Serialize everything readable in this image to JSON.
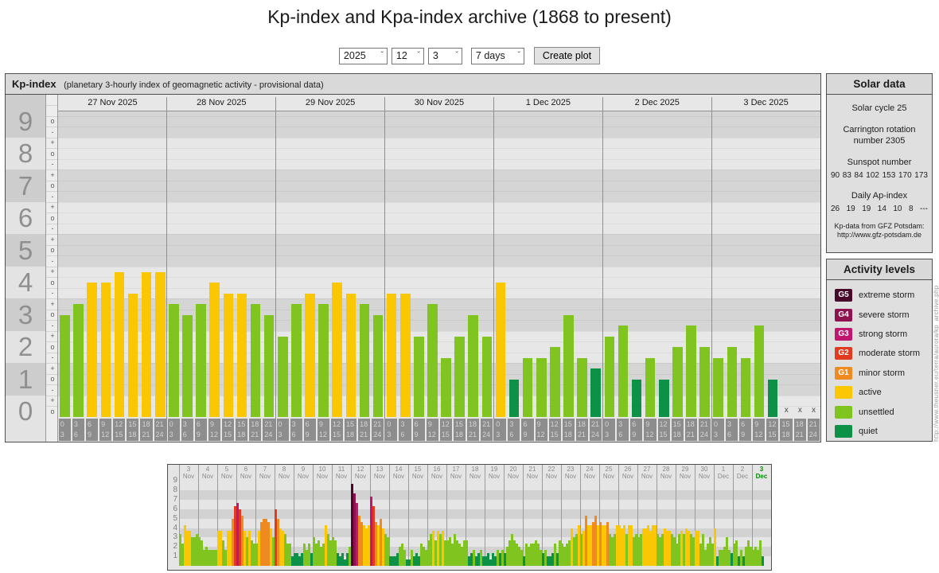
{
  "title": "Kp-index and Kpa-index archive (1868 to present)",
  "controls": {
    "year": "2025",
    "month": "12",
    "day": "3",
    "range": "7 days",
    "create_button": "Create plot"
  },
  "main_chart": {
    "header_title": "Kp-index",
    "header_subtitle": "(planetary 3-hourly index of geomagnetic activity - provisional data)",
    "missing_marker": "x",
    "y_numbers": [
      9,
      8,
      7,
      6,
      5,
      4,
      3,
      2,
      1,
      0
    ],
    "sub_tick_labels": [
      "+",
      "o",
      "-"
    ],
    "hour_slots": [
      [
        "0",
        "3"
      ],
      [
        "3",
        "6"
      ],
      [
        "6",
        "9"
      ],
      [
        "9",
        "12"
      ],
      [
        "12",
        "15"
      ],
      [
        "15",
        "18"
      ],
      [
        "18",
        "21"
      ],
      [
        "21",
        "24"
      ]
    ]
  },
  "solar_data": {
    "title": "Solar data",
    "solar_cycle": "Solar cycle 25",
    "carrington": "Carrington rotation number 2305",
    "sunspot_label": "Sunspot number",
    "sunspot_values": [
      "90",
      "83",
      "84",
      "102",
      "153",
      "170",
      "173"
    ],
    "ap_label": "Daily Ap-index",
    "ap_values": [
      "26",
      "19",
      "19",
      "14",
      "10",
      "8",
      "---"
    ],
    "source_line1": "Kp-data from GFZ Potsdam:",
    "source_line2": "http://www.gfz-potsdam.de"
  },
  "activity_levels": {
    "title": "Activity levels",
    "items": [
      {
        "code": "G5",
        "label": "extreme storm",
        "color": "#470829"
      },
      {
        "code": "G4",
        "label": "severe storm",
        "color": "#8e1150"
      },
      {
        "code": "G3",
        "label": "strong storm",
        "color": "#c11670"
      },
      {
        "code": "G2",
        "label": "moderate storm",
        "color": "#e03b21"
      },
      {
        "code": "G1",
        "label": "minor storm",
        "color": "#ef8a20"
      },
      {
        "code": "",
        "label": "active",
        "color": "#fbc602"
      },
      {
        "code": "",
        "label": "unsettled",
        "color": "#80c41f"
      },
      {
        "code": "",
        "label": "quiet",
        "color": "#0d9147"
      }
    ]
  },
  "watermark": "http://www.theusner.eu/terra/aurora/kp_archive.php",
  "chart_data": [
    {
      "type": "bar",
      "title": "Kp-index 27 Nov 2025 - 3 Dec 2025 (3-hourly values, provisional)",
      "ylabel": "Kp",
      "ylim": [
        0,
        9.33
      ],
      "grid": true,
      "x_slot_labels": [
        "0-3",
        "3-6",
        "6-9",
        "9-12",
        "12-15",
        "15-18",
        "18-21",
        "21-24"
      ],
      "days": [
        {
          "date": "27 Nov 2025",
          "kp": [
            3,
            3.33,
            4,
            4,
            4.33,
            3.67,
            4.33,
            4.33
          ]
        },
        {
          "date": "28 Nov 2025",
          "kp": [
            3.33,
            3,
            3.33,
            4,
            3.67,
            3.67,
            3.33,
            3
          ]
        },
        {
          "date": "29 Nov 2025",
          "kp": [
            2.33,
            3.33,
            3.67,
            3.33,
            4,
            3.67,
            3.33,
            3
          ]
        },
        {
          "date": "30 Nov 2025",
          "kp": [
            3.67,
            3.67,
            2.33,
            3.33,
            1.67,
            2.33,
            3,
            2.33
          ]
        },
        {
          "date": "1 Dec 2025",
          "kp": [
            4,
            1,
            1.67,
            1.67,
            2,
            3,
            1.67,
            1.33
          ]
        },
        {
          "date": "2 Dec 2025",
          "kp": [
            2.33,
            2.67,
            1,
            1.67,
            1,
            2,
            2.67,
            2
          ]
        },
        {
          "date": "3 Dec 2025",
          "kp": [
            1.67,
            2,
            1.67,
            2.67,
            1,
            null,
            null,
            null
          ]
        }
      ]
    },
    {
      "type": "bar",
      "title": "Kp-index overview 3 Nov 2025 - 3 Dec 2025",
      "ylim": [
        0,
        9
      ],
      "y_ticks": [
        9,
        8,
        7,
        6,
        5,
        4,
        3,
        2,
        1
      ],
      "days": [
        {
          "day": "3",
          "month": "Nov",
          "kp": [
            3.33,
            2.33,
            4.33,
            3.67,
            3.67,
            3,
            3,
            3.33
          ]
        },
        {
          "day": "4",
          "month": "Nov",
          "kp": [
            3,
            2.67,
            1.67,
            2,
            1.67,
            1.67,
            1.67,
            1.67
          ]
        },
        {
          "day": "5",
          "month": "Nov",
          "kp": [
            3.67,
            3.67,
            2.67,
            1.67,
            3.67,
            3.67,
            5,
            6.33
          ]
        },
        {
          "day": "6",
          "month": "Nov",
          "kp": [
            6.67,
            6,
            5.33,
            3.67,
            3,
            3.67,
            2.67,
            2.33
          ]
        },
        {
          "day": "7",
          "month": "Nov",
          "kp": [
            2.33,
            3.67,
            4.67,
            5,
            5,
            4.67,
            4,
            3
          ]
        },
        {
          "day": "8",
          "month": "Nov",
          "kp": [
            6,
            5,
            4,
            3.67,
            3.33,
            2.33,
            2.33,
            1
          ]
        },
        {
          "day": "9",
          "month": "Nov",
          "kp": [
            1.33,
            1.33,
            1,
            1.33,
            2.33,
            1.67,
            2.33,
            1.33
          ]
        },
        {
          "day": "10",
          "month": "Nov",
          "kp": [
            3,
            2.33,
            2.67,
            2,
            2.33,
            4.33,
            3.33,
            2.67
          ]
        },
        {
          "day": "11",
          "month": "Nov",
          "kp": [
            3,
            2.67,
            1.33,
            1,
            1.33,
            0.67,
            1.33,
            2
          ]
        },
        {
          "day": "12",
          "month": "Nov",
          "kp": [
            8.67,
            7.67,
            6.67,
            5.33,
            4.67,
            4.33,
            4,
            4.33
          ]
        },
        {
          "day": "13",
          "month": "Nov",
          "kp": [
            7.33,
            6.33,
            4.67,
            4.33,
            5,
            4,
            3.33,
            3
          ]
        },
        {
          "day": "14",
          "month": "Nov",
          "kp": [
            1,
            1,
            1,
            1.33,
            2,
            2.33,
            1.67,
            0.67
          ]
        },
        {
          "day": "15",
          "month": "Nov",
          "kp": [
            0.67,
            1.67,
            1,
            1.33,
            1,
            2.33,
            2,
            1.67
          ]
        },
        {
          "day": "16",
          "month": "Nov",
          "kp": [
            2.67,
            3.33,
            3.67,
            2.67,
            3.67,
            3.33,
            3.67,
            2.67
          ]
        },
        {
          "day": "17",
          "month": "Nov",
          "kp": [
            2.67,
            3,
            2.33,
            3.33,
            2.67,
            2.33,
            2,
            2.67
          ]
        },
        {
          "day": "18",
          "month": "Nov",
          "kp": [
            2.67,
            1,
            1.33,
            1.67,
            1,
            1.33,
            1.67,
            1
          ]
        },
        {
          "day": "19",
          "month": "Nov",
          "kp": [
            1,
            1.33,
            0.67,
            1.33,
            1,
            1.67,
            1.33,
            1.67
          ]
        },
        {
          "day": "20",
          "month": "Nov",
          "kp": [
            1.33,
            2,
            2.67,
            3.33,
            2.67,
            2.33,
            2,
            1.67
          ]
        },
        {
          "day": "21",
          "month": "Nov",
          "kp": [
            1,
            2.33,
            2,
            2.33,
            2.33,
            2.67,
            2.33,
            1.67
          ]
        },
        {
          "day": "22",
          "month": "Nov",
          "kp": [
            1.33,
            1.67,
            1,
            1,
            1.33,
            2.33,
            1.33,
            2.67
          ]
        },
        {
          "day": "23",
          "month": "Nov",
          "kp": [
            2.33,
            2,
            2.33,
            2.67,
            4,
            3,
            3.33,
            4.33
          ]
        },
        {
          "day": "24",
          "month": "Nov",
          "kp": [
            3.33,
            3.67,
            5.33,
            4.33,
            4.33,
            4.67,
            5.33,
            4.33
          ]
        },
        {
          "day": "25",
          "month": "Nov",
          "kp": [
            4.67,
            4.33,
            4.33,
            4.67,
            3.33,
            3,
            3.33,
            4.33
          ]
        },
        {
          "day": "26",
          "month": "Nov",
          "kp": [
            4.33,
            4,
            4.33,
            3.33,
            4.33,
            4.33,
            3,
            3.33
          ]
        },
        {
          "day": "27",
          "month": "Nov",
          "kp": [
            3,
            3.33,
            4,
            4,
            4.33,
            3.67,
            4.33,
            4.33
          ]
        },
        {
          "day": "28",
          "month": "Nov",
          "kp": [
            3.33,
            3,
            3.33,
            4,
            3.67,
            3.67,
            3.33,
            3
          ]
        },
        {
          "day": "29",
          "month": "Nov",
          "kp": [
            2.33,
            3.33,
            3.67,
            3.33,
            4,
            3.67,
            3.33,
            3
          ]
        },
        {
          "day": "30",
          "month": "Nov",
          "kp": [
            3.67,
            3.67,
            2.33,
            3.33,
            1.67,
            2.33,
            3,
            2.33
          ]
        },
        {
          "day": "1",
          "month": "Dec",
          "kp": [
            4,
            1,
            1.67,
            1.67,
            2,
            3,
            1.67,
            1.33
          ]
        },
        {
          "day": "2",
          "month": "Dec",
          "kp": [
            2.33,
            2.67,
            1,
            1.67,
            1,
            2,
            2.67,
            2
          ]
        },
        {
          "day": "3",
          "month": "Dec",
          "selected": true,
          "kp": [
            1.67,
            2,
            1.67,
            2.67,
            1,
            null,
            null,
            null
          ]
        }
      ]
    }
  ]
}
